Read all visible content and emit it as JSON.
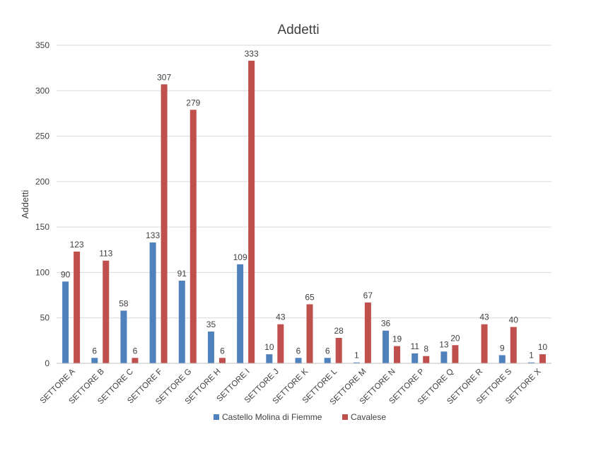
{
  "chart_data": {
    "type": "bar",
    "title": "Addetti",
    "ylabel": "Addetti",
    "xlabel": "",
    "ylim": [
      0,
      350
    ],
    "yticks": [
      0,
      50,
      100,
      150,
      200,
      250,
      300,
      350
    ],
    "grid": true,
    "legend_position": "bottom",
    "categories": [
      "SETTORE A",
      "SETTORE B",
      "SETTORE C",
      "SETTORE F",
      "SETTORE G",
      "SETTORE H",
      "SETTORE I",
      "SETTORE J",
      "SETTORE K",
      "SETTORE L",
      "SETTORE M",
      "SETTORE N",
      "SETTORE P",
      "SETTORE Q",
      "SETTORE R",
      "SETTORE S",
      "SETTORE X"
    ],
    "series": [
      {
        "name": "Castello Molina di Fiemme",
        "color": "#4f81bd",
        "values": [
          90,
          6,
          58,
          133,
          91,
          35,
          109,
          10,
          6,
          6,
          1,
          36,
          11,
          13,
          null,
          9,
          1
        ]
      },
      {
        "name": "Cavalese",
        "color": "#c0504d",
        "values": [
          123,
          113,
          6,
          307,
          279,
          6,
          333,
          43,
          65,
          28,
          67,
          19,
          8,
          20,
          43,
          40,
          10
        ]
      }
    ]
  }
}
